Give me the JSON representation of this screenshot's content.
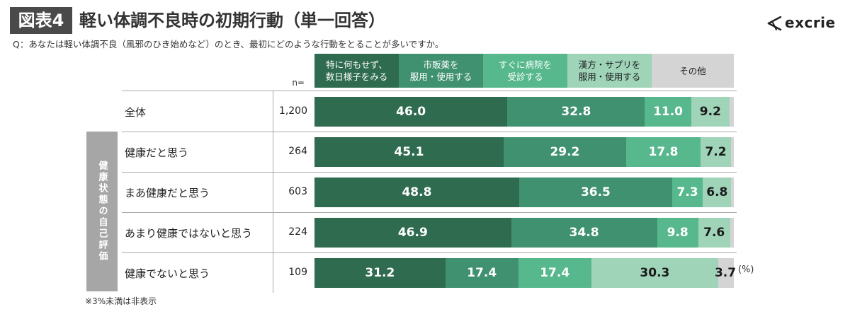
{
  "header": {
    "figure_label": "図表4",
    "title": "軽い体調不良時の初期行動（単一回答）",
    "question": "Q：あなたは軽い体調不良（風邪のひき始めなど）のとき、最初にどのような行動をとることが多いですか。"
  },
  "logo": {
    "text": "excrie",
    "icon": "excrie-mark-icon"
  },
  "n_header": "n=",
  "side_label": "健康状態の自己評価",
  "unit": "(%)",
  "footnote": "※3%未満は非表示",
  "colors": {
    "series": [
      "#2e6b4f",
      "#3f9170",
      "#56b88c",
      "#9fd4b9",
      "#d4d4d4"
    ],
    "label_text": [
      "#ffffff",
      "#ffffff",
      "#ffffff",
      "#1a1a1a",
      "#1a1a1a"
    ]
  },
  "chart_data": {
    "type": "bar",
    "orientation": "horizontal",
    "stacked": true,
    "percent": true,
    "hide_labels_below": 3,
    "categories": [
      "全体",
      "健康だと思う",
      "まあ健康だと思う",
      "あまり健康ではないと思う",
      "健康でないと思う"
    ],
    "n": [
      "1,200",
      "264",
      "603",
      "224",
      "109"
    ],
    "series": [
      {
        "name": "特に何もせず、\n数日様子をみる",
        "values": [
          46.0,
          45.1,
          48.8,
          46.9,
          31.2
        ]
      },
      {
        "name": "市販薬を\n服用・使用する",
        "values": [
          32.8,
          29.2,
          36.5,
          34.8,
          17.4
        ]
      },
      {
        "name": "すぐに病院を\n受診する",
        "values": [
          11.0,
          17.8,
          7.3,
          9.8,
          17.4
        ]
      },
      {
        "name": "漢方・サプリを\n服用・使用する",
        "values": [
          9.2,
          7.2,
          6.8,
          7.6,
          30.3
        ]
      },
      {
        "name": "その他",
        "values": [
          1.0,
          0.7,
          0.6,
          0.9,
          3.7
        ]
      }
    ]
  }
}
